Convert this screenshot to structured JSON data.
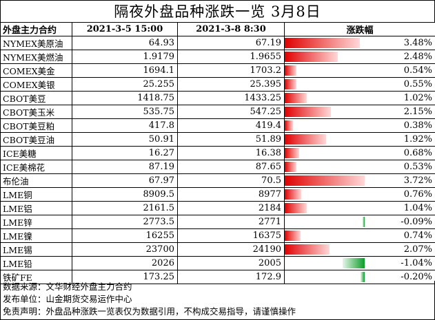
{
  "title": "隔夜外盘品种涨跌一览 3月8日",
  "headers": [
    "外盘主力合约",
    "2021-3-5 15:00",
    "2021-3-8 8:30",
    "涨跌幅"
  ],
  "rows": [
    {
      "name": "NYMEX美原油",
      "prev": "64.93",
      "curr": "67.19",
      "change": "3.48%",
      "pct": 3.48
    },
    {
      "name": "NYMEX美燃油",
      "prev": "1.9179",
      "curr": "1.9655",
      "change": "2.48%",
      "pct": 2.48
    },
    {
      "name": "COMEX美金",
      "prev": "1694.1",
      "curr": "1703.2",
      "change": "0.54%",
      "pct": 0.54
    },
    {
      "name": "COMEX美银",
      "prev": "25.255",
      "curr": "25.395",
      "change": "0.55%",
      "pct": 0.55
    },
    {
      "name": "CBOT美豆",
      "prev": "1418.75",
      "curr": "1433.25",
      "change": "1.02%",
      "pct": 1.02
    },
    {
      "name": "CBOT美玉米",
      "prev": "535.75",
      "curr": "547.25",
      "change": "2.15%",
      "pct": 2.15
    },
    {
      "name": "CBOT美豆粕",
      "prev": "417.8",
      "curr": "419.4",
      "change": "0.38%",
      "pct": 0.38
    },
    {
      "name": "CBOT美豆油",
      "prev": "50.91",
      "curr": "51.89",
      "change": "1.92%",
      "pct": 1.92
    },
    {
      "name": "ICE美糖",
      "prev": "16.27",
      "curr": "16.38",
      "change": "0.68%",
      "pct": 0.68
    },
    {
      "name": "ICE美棉花",
      "prev": "87.19",
      "curr": "87.65",
      "change": "0.53%",
      "pct": 0.53
    },
    {
      "name": "布伦油",
      "prev": "67.97",
      "curr": "70.5",
      "change": "3.72%",
      "pct": 3.72
    },
    {
      "name": "LME铜",
      "prev": "8909.5",
      "curr": "8977",
      "change": "0.76%",
      "pct": 0.76
    },
    {
      "name": "LME铝",
      "prev": "2161.5",
      "curr": "2184",
      "change": "1.04%",
      "pct": 1.04
    },
    {
      "name": "LME锌",
      "prev": "2773.5",
      "curr": "2771",
      "change": "-0.09%",
      "pct": -0.09
    },
    {
      "name": "LME镍",
      "prev": "16255",
      "curr": "16375",
      "change": "0.74%",
      "pct": 0.74
    },
    {
      "name": "LME锡",
      "prev": "23700",
      "curr": "24190",
      "change": "2.07%",
      "pct": 2.07
    },
    {
      "name": "LME铅",
      "prev": "2026",
      "curr": "2005",
      "change": "-1.04%",
      "pct": -1.04
    },
    {
      "name": "铁矿FE",
      "prev": "173.25",
      "curr": "172.9",
      "change": "-0.20%",
      "pct": -0.2
    }
  ],
  "notes": [
    "数据来源：文华财经外盘主力合约",
    "发布单位：山金期货交易运作中心",
    "免责声明：外盘品种涨跌一览表仅为数据引用，不构成交易指导，请谨慎操作"
  ],
  "colors": {
    "positive": "#e00000",
    "negative": "#0a9d2a"
  }
}
